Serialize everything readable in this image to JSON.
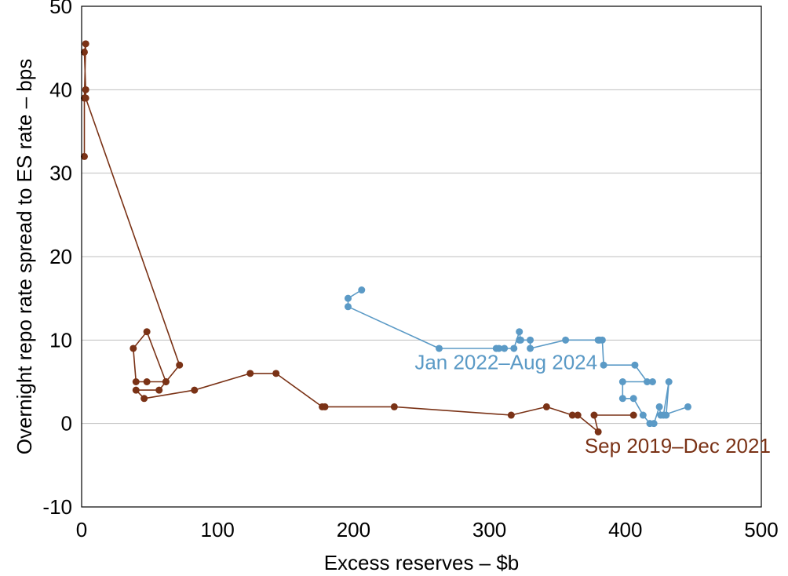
{
  "chart_data": {
    "type": "line",
    "title": "",
    "xlabel": "Excess reserves – $b",
    "ylabel": "Overnight repo rate spread to ES rate – bps",
    "xlim": [
      0,
      500
    ],
    "ylim": [
      -10,
      50
    ],
    "xticks": [
      "0",
      "100",
      "200",
      "300",
      "400",
      "500"
    ],
    "yticks": [
      "-10",
      "0",
      "10",
      "20",
      "30",
      "40",
      "50"
    ],
    "grid": "horizontal",
    "series": [
      {
        "name": "Sep 2019–Dec 2021",
        "color": "#7a3216",
        "points": [
          [
            2,
            32
          ],
          [
            2,
            39
          ],
          [
            3,
            45.5
          ],
          [
            2,
            44.5
          ],
          [
            3,
            40
          ],
          [
            3,
            39
          ],
          [
            72,
            7
          ],
          [
            62,
            5
          ],
          [
            48,
            11
          ],
          [
            38,
            9
          ],
          [
            40,
            5
          ],
          [
            48,
            5
          ],
          [
            62,
            5
          ],
          [
            57,
            4
          ],
          [
            40,
            4
          ],
          [
            46,
            3
          ],
          [
            83,
            4
          ],
          [
            124,
            6
          ],
          [
            143,
            6
          ],
          [
            177,
            2
          ],
          [
            179,
            2
          ],
          [
            230,
            2
          ],
          [
            316,
            1
          ],
          [
            342,
            2
          ],
          [
            361,
            1
          ],
          [
            365,
            1
          ],
          [
            380,
            -1
          ],
          [
            377,
            1
          ],
          [
            406,
            1
          ]
        ]
      },
      {
        "name": "Jan 2022–Aug 2024",
        "color": "#5b9ac6",
        "points": [
          [
            206,
            16
          ],
          [
            196,
            15
          ],
          [
            196,
            14
          ],
          [
            263,
            9
          ],
          [
            305,
            9
          ],
          [
            307,
            9
          ],
          [
            311,
            9
          ],
          [
            318,
            9
          ],
          [
            322,
            11
          ],
          [
            323,
            10
          ],
          [
            322,
            10
          ],
          [
            330,
            10
          ],
          [
            330,
            9
          ],
          [
            356,
            10
          ],
          [
            380,
            10
          ],
          [
            381,
            10
          ],
          [
            383,
            10
          ],
          [
            384,
            7
          ],
          [
            407,
            7
          ],
          [
            416,
            5
          ],
          [
            420,
            5
          ],
          [
            398,
            5
          ],
          [
            398,
            3
          ],
          [
            406,
            3
          ],
          [
            413,
            1
          ],
          [
            418,
            0
          ],
          [
            421,
            0
          ],
          [
            425,
            2
          ],
          [
            426,
            1
          ],
          [
            430,
            1
          ],
          [
            432,
            5
          ],
          [
            428,
            1
          ],
          [
            446,
            2
          ]
        ]
      }
    ],
    "annotations": [
      {
        "text": "Jan 2022–Aug 2024",
        "series": 1,
        "at": [
          245,
          6.5
        ]
      },
      {
        "text": "Sep 2019–Dec 2021",
        "series": 0,
        "at": [
          370,
          -3.5
        ]
      }
    ]
  }
}
